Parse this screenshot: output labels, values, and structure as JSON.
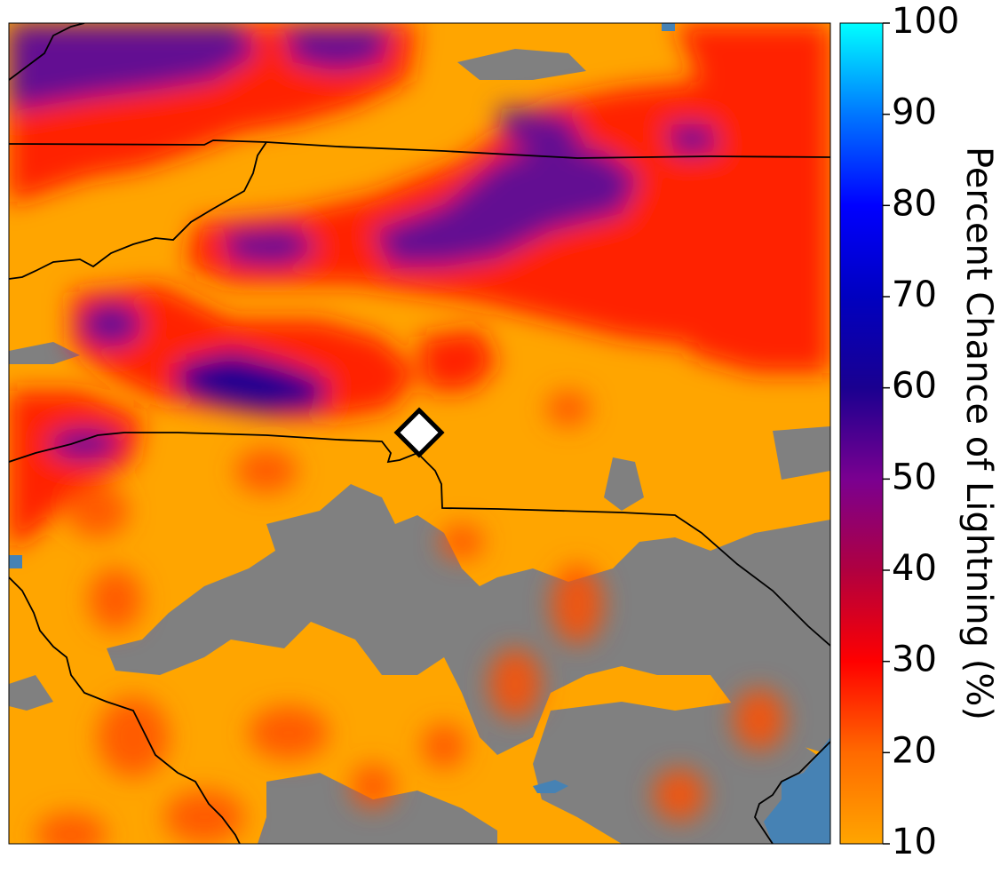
{
  "map": {
    "colors": {
      "no_data": "#808080",
      "water": "#4682b4",
      "low": "#ffa500",
      "mid": "#ff0000",
      "high": "#6a0a8a",
      "peak": "#1a0090",
      "border": "#000000",
      "marker_fill": "#ffffff",
      "marker_stroke": "#000000"
    },
    "marker_icon": "diamond-location-marker"
  },
  "colorbar": {
    "label": "Percent Chance of Lightning (%)",
    "ticks": [
      "10",
      "20",
      "30",
      "40",
      "50",
      "60",
      "70",
      "80",
      "90",
      "100"
    ],
    "min": 10,
    "max": 100,
    "gradient_stops": [
      {
        "value": 10,
        "color": "#ffa500"
      },
      {
        "value": 20,
        "color": "#ff6a00"
      },
      {
        "value": 30,
        "color": "#ff0000"
      },
      {
        "value": 40,
        "color": "#b00040"
      },
      {
        "value": 50,
        "color": "#7a0090"
      },
      {
        "value": 60,
        "color": "#1a0090"
      },
      {
        "value": 70,
        "color": "#0000c0"
      },
      {
        "value": 80,
        "color": "#0000ff"
      },
      {
        "value": 90,
        "color": "#0077ff"
      },
      {
        "value": 100,
        "color": "#00ffff"
      }
    ]
  }
}
